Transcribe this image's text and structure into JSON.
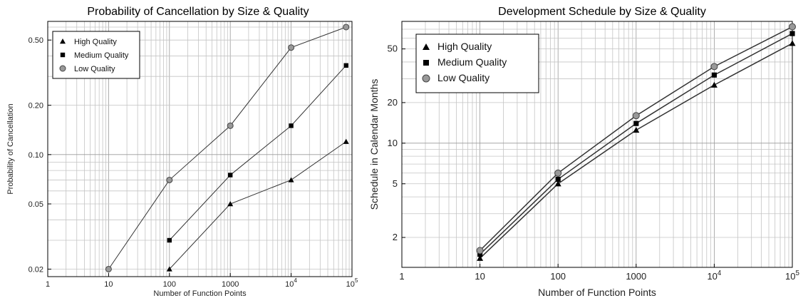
{
  "chart_data": [
    {
      "type": "line",
      "title": "Probability of Cancellation by Size & Quality",
      "xlabel": "Number of Function Points",
      "ylabel": "Probability of Cancellation",
      "xscale": "log",
      "yscale": "log",
      "xlim": [
        1,
        100000
      ],
      "ylim": [
        0.018,
        0.65
      ],
      "xticks": [
        {
          "value": 1,
          "label": "1"
        },
        {
          "value": 10,
          "label": "10"
        },
        {
          "value": 100,
          "label": "100"
        },
        {
          "value": 1000,
          "label": "1000"
        },
        {
          "value": 10000,
          "label": "10^4"
        },
        {
          "value": 100000,
          "label": "10^5"
        }
      ],
      "yticks": [
        {
          "value": 0.02,
          "label": "0.02"
        },
        {
          "value": 0.05,
          "label": "0.05"
        },
        {
          "value": 0.1,
          "label": "0.10"
        },
        {
          "value": 0.2,
          "label": "0.20"
        },
        {
          "value": 0.5,
          "label": "0.50"
        }
      ],
      "grid": true,
      "legend_position": "top-left",
      "series": [
        {
          "name": "High Quality",
          "marker": "triangle",
          "color": "#000000",
          "x": [
            100,
            1000,
            10000,
            80000
          ],
          "y": [
            0.02,
            0.05,
            0.07,
            0.12
          ]
        },
        {
          "name": "Medium Quality",
          "marker": "square",
          "color": "#000000",
          "x": [
            100,
            1000,
            10000,
            80000
          ],
          "y": [
            0.03,
            0.075,
            0.15,
            0.35
          ]
        },
        {
          "name": "Low Quality",
          "marker": "circle",
          "color": "#999999",
          "x": [
            10,
            100,
            1000,
            10000,
            80000
          ],
          "y": [
            0.02,
            0.07,
            0.15,
            0.45,
            0.6
          ]
        }
      ]
    },
    {
      "type": "line",
      "title": "Development Schedule by Size & Quality",
      "xlabel": "Number of Function Points",
      "ylabel": "Schedule in Calendar Months",
      "xscale": "log",
      "yscale": "log",
      "xlim": [
        1,
        100000
      ],
      "ylim": [
        1.2,
        80
      ],
      "xticks": [
        {
          "value": 1,
          "label": "1"
        },
        {
          "value": 10,
          "label": "10"
        },
        {
          "value": 100,
          "label": "100"
        },
        {
          "value": 1000,
          "label": "1000"
        },
        {
          "value": 10000,
          "label": "10^4"
        },
        {
          "value": 100000,
          "label": "10^5"
        }
      ],
      "yticks": [
        {
          "value": 2,
          "label": "2"
        },
        {
          "value": 5,
          "label": "5"
        },
        {
          "value": 10,
          "label": "10"
        },
        {
          "value": 20,
          "label": "20"
        },
        {
          "value": 50,
          "label": "50"
        }
      ],
      "grid": true,
      "legend_position": "top-left",
      "series": [
        {
          "name": "High Quality",
          "marker": "triangle",
          "color": "#000000",
          "x": [
            10,
            100,
            1000,
            10000,
            100000
          ],
          "y": [
            1.4,
            5,
            12.5,
            27,
            55
          ]
        },
        {
          "name": "Medium Quality",
          "marker": "square",
          "color": "#000000",
          "x": [
            10,
            100,
            1000,
            10000,
            100000
          ],
          "y": [
            1.5,
            5.4,
            14,
            32,
            65
          ]
        },
        {
          "name": "Low Quality",
          "marker": "circle",
          "color": "#999999",
          "x": [
            10,
            100,
            1000,
            10000,
            100000
          ],
          "y": [
            1.6,
            6,
            16,
            37,
            73
          ]
        }
      ]
    }
  ]
}
